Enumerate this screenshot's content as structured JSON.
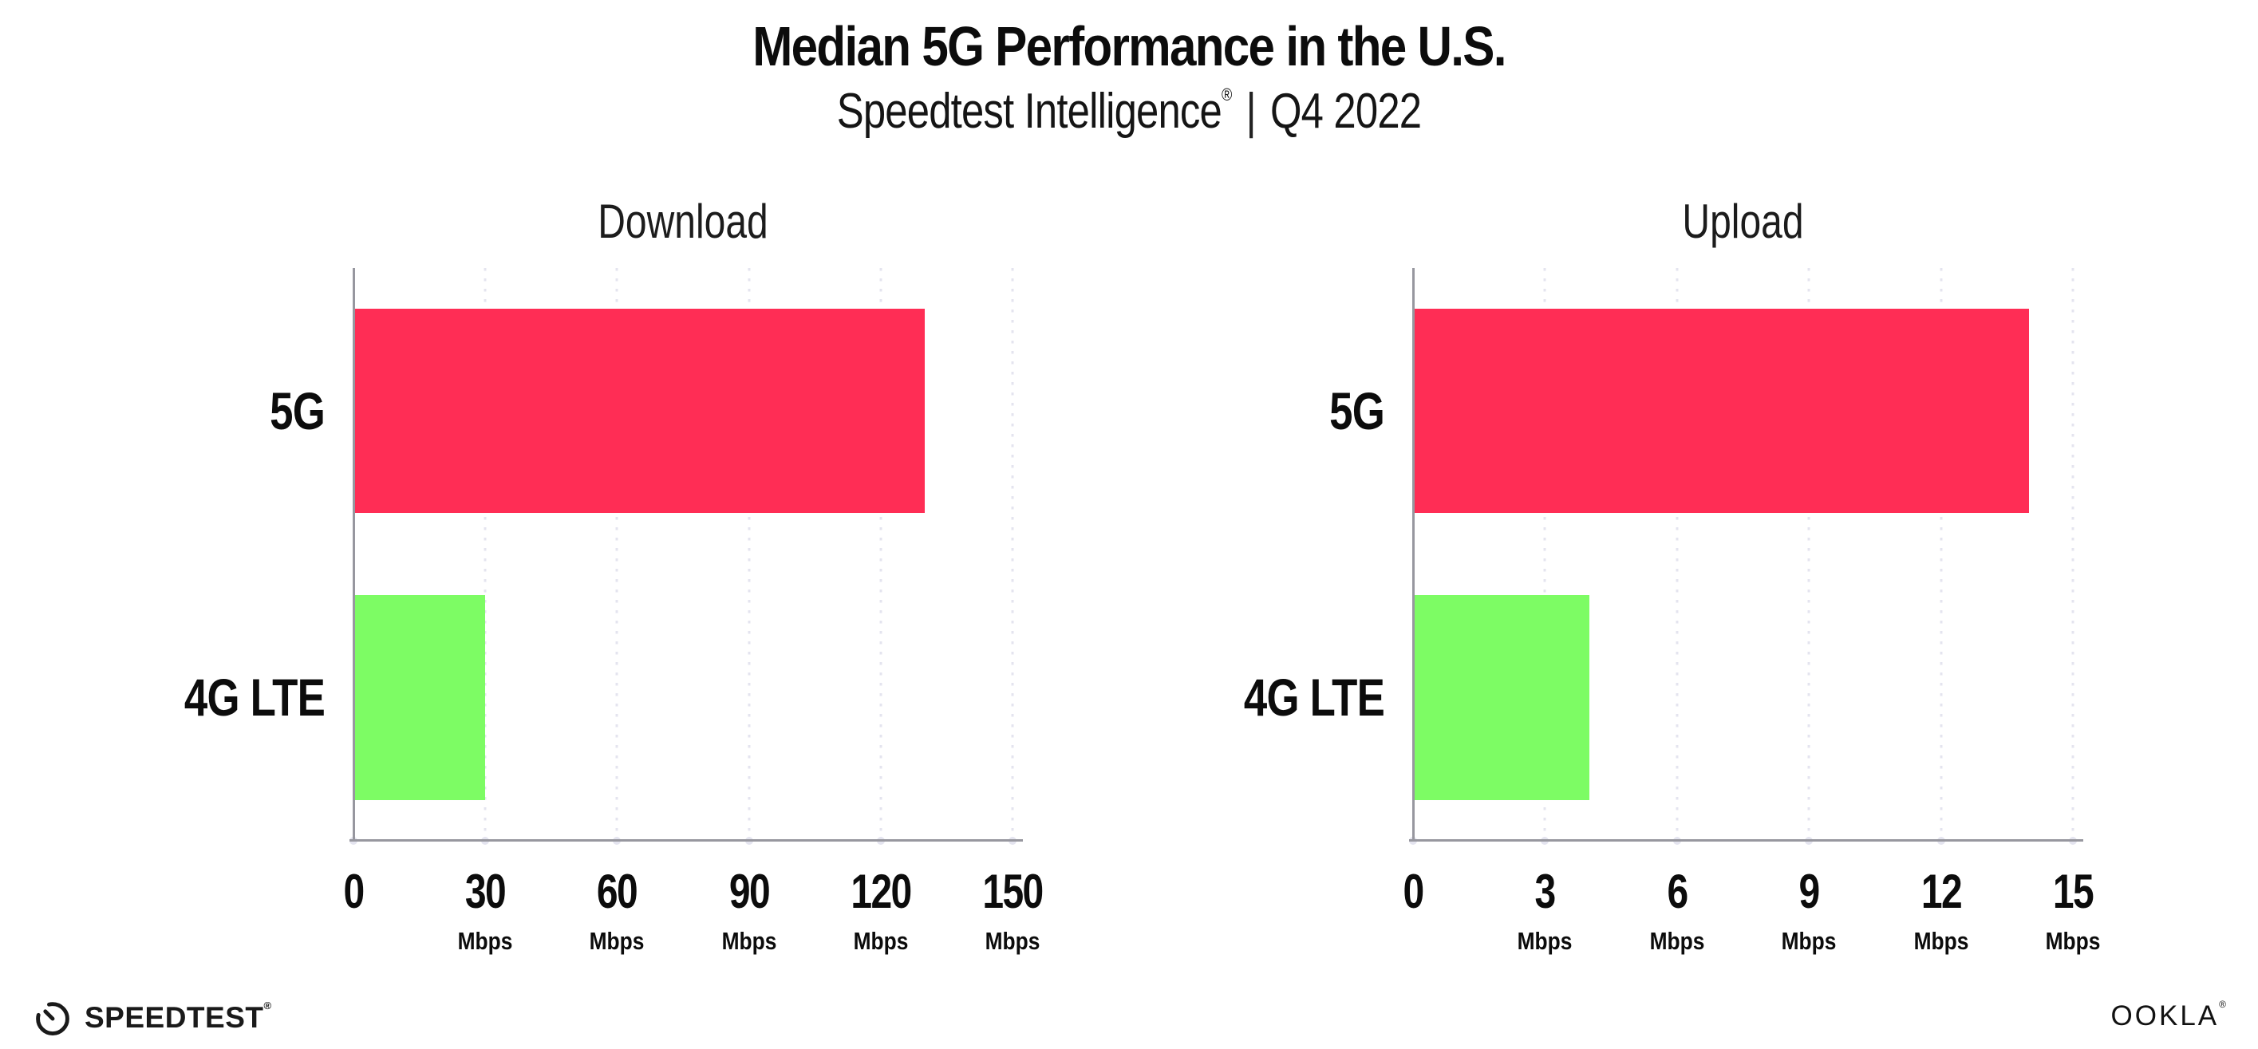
{
  "header": {
    "title": "Median 5G Performance in the U.S.",
    "subtitle_brand": "Speedtest Intelligence",
    "subtitle_reg": "®",
    "subtitle_sep": "|",
    "subtitle_period": "Q4 2022"
  },
  "colors": {
    "bar_5g": "#FF2D55",
    "bar_4g_lte": "#7DFC64",
    "gridline": "#E4E4EF",
    "axis_line": "#97979F",
    "text": "#0C0C0C"
  },
  "chart_data": [
    {
      "type": "bar",
      "orientation": "horizontal",
      "title": "Download",
      "categories": [
        "5G",
        "4G LTE"
      ],
      "values": [
        130,
        30
      ],
      "unit": "Mbps",
      "xlim": [
        0,
        150
      ],
      "xticks": [
        0,
        30,
        60,
        90,
        120,
        150
      ],
      "bar_colors": [
        "#FF2D55",
        "#7DFC64"
      ],
      "grid": "dotted-vertical",
      "legend": "none"
    },
    {
      "type": "bar",
      "orientation": "horizontal",
      "title": "Upload",
      "categories": [
        "5G",
        "4G LTE"
      ],
      "values": [
        14,
        4
      ],
      "unit": "Mbps",
      "xlim": [
        0,
        15
      ],
      "xticks": [
        0,
        3,
        6,
        9,
        12,
        15
      ],
      "bar_colors": [
        "#FF2D55",
        "#7DFC64"
      ],
      "grid": "dotted-vertical",
      "legend": "none"
    }
  ],
  "footer": {
    "speedtest_text": "SPEEDTEST",
    "speedtest_reg": "®",
    "ookla_text": "OOKLA",
    "ookla_reg": "®"
  }
}
